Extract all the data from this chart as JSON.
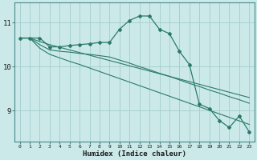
{
  "xlabel": "Humidex (Indice chaleur)",
  "x_values": [
    0,
    1,
    2,
    3,
    4,
    5,
    6,
    7,
    8,
    9,
    10,
    11,
    12,
    13,
    14,
    15,
    16,
    17,
    18,
    19,
    20,
    21,
    22,
    23
  ],
  "line1_y": [
    10.65,
    10.65,
    10.65,
    10.45,
    10.45,
    10.48,
    10.5,
    10.52,
    10.55,
    10.55,
    10.85,
    11.05,
    11.15,
    11.15,
    10.85,
    10.75,
    10.35,
    10.05,
    9.15,
    9.05,
    8.78,
    8.62,
    8.88,
    8.52
  ],
  "line2_y": [
    10.65,
    10.65,
    10.5,
    10.38,
    10.35,
    10.33,
    10.3,
    10.28,
    10.25,
    10.22,
    10.15,
    10.08,
    10.0,
    9.93,
    9.85,
    9.78,
    9.7,
    9.62,
    9.55,
    9.47,
    9.4,
    9.32,
    9.25,
    9.17
  ],
  "line3_y": [
    10.65,
    10.65,
    10.42,
    10.28,
    10.2,
    10.12,
    10.05,
    9.97,
    9.89,
    9.81,
    9.73,
    9.65,
    9.57,
    9.49,
    9.41,
    9.33,
    9.25,
    9.17,
    9.09,
    9.01,
    8.93,
    8.85,
    8.77,
    8.69
  ],
  "line4_y": [
    10.65,
    10.65,
    10.57,
    10.5,
    10.44,
    10.38,
    10.32,
    10.26,
    10.2,
    10.14,
    10.08,
    10.02,
    9.96,
    9.9,
    9.84,
    9.78,
    9.72,
    9.66,
    9.6,
    9.54,
    9.48,
    9.42,
    9.36,
    9.3
  ],
  "bg_color": "#cce9e9",
  "grid_color": "#a8d0d0",
  "line_color": "#2a7a6a",
  "yticks": [
    9,
    10,
    11
  ],
  "ylim": [
    8.3,
    11.45
  ],
  "xlim": [
    -0.5,
    23.5
  ]
}
